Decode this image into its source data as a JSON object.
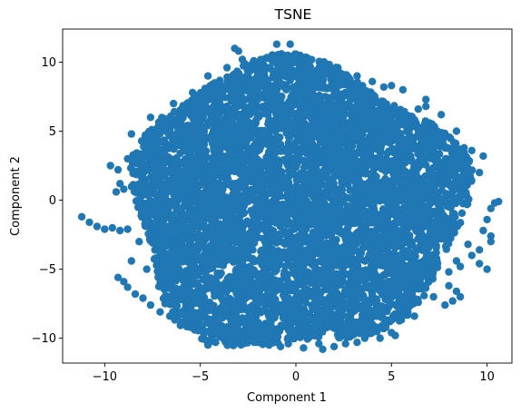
{
  "chart_data": {
    "type": "scatter",
    "title": "TSNE",
    "xlabel": "Component 1",
    "ylabel": "Component 2",
    "xlim": [
      -12.2,
      11.3
    ],
    "ylim": [
      -11.8,
      12.4
    ],
    "xticks": [
      -10,
      -5,
      0,
      5,
      10
    ],
    "yticks": [
      -10,
      -5,
      0,
      5,
      10
    ],
    "xtick_labels": [
      "−10",
      "−5",
      "0",
      "5",
      "10"
    ],
    "ytick_labels": [
      "−10",
      "−5",
      "0",
      "5",
      "10"
    ],
    "grid": false,
    "legend": false,
    "series": [
      {
        "color": "#1f77b4",
        "cluster": {
          "center": [
            0.0,
            -0.2
          ],
          "radius_x": 8.7,
          "radius_y_top": 10.2,
          "radius_y_bottom": 10.6,
          "approx_points": 6000
        },
        "points": [
          [
            -11.2,
            -1.2
          ],
          [
            -10.8,
            -1.6
          ],
          [
            -10.4,
            -1.9
          ],
          [
            -10.0,
            -2.1
          ],
          [
            -9.6,
            -2.0
          ],
          [
            -9.2,
            -2.2
          ],
          [
            -8.8,
            -2.1
          ],
          [
            -9.7,
            2.5
          ],
          [
            -9.3,
            2.2
          ],
          [
            -9.2,
            1.2
          ],
          [
            -9.4,
            0.6
          ],
          [
            -9.0,
            0.8
          ],
          [
            -9.3,
            -5.6
          ],
          [
            -9.0,
            -5.9
          ],
          [
            -8.8,
            -6.3
          ],
          [
            -8.4,
            -6.8
          ],
          [
            -8.0,
            -7.1
          ],
          [
            -7.6,
            -7.6
          ],
          [
            -7.1,
            -8.1
          ],
          [
            -6.6,
            -8.4
          ],
          [
            -6.0,
            -8.2
          ],
          [
            -5.6,
            -8.6
          ],
          [
            -4.6,
            -10.5
          ],
          [
            -4.2,
            -10.3
          ],
          [
            -3.8,
            -10.0
          ],
          [
            -3.2,
            -9.8
          ],
          [
            -2.6,
            -10.0
          ],
          [
            -2.0,
            -10.3
          ],
          [
            -1.4,
            -10.5
          ],
          [
            -0.8,
            -10.6
          ],
          [
            -0.4,
            -10.4
          ],
          [
            0.4,
            -10.7
          ],
          [
            1.4,
            -10.8
          ],
          [
            2.0,
            -10.6
          ],
          [
            2.6,
            -10.4
          ],
          [
            3.2,
            -10.3
          ],
          [
            3.6,
            -10.0
          ],
          [
            5.0,
            -9.6
          ],
          [
            5.2,
            -9.8
          ],
          [
            -3.2,
            11.0
          ],
          [
            -3.0,
            10.8
          ],
          [
            -1.0,
            11.3
          ],
          [
            -0.3,
            11.3
          ],
          [
            -2.8,
            10.2
          ],
          [
            -4.6,
            9.0
          ],
          [
            -3.6,
            9.6
          ],
          [
            -1.8,
            10.1
          ],
          [
            0.6,
            10.3
          ],
          [
            2.2,
            9.6
          ],
          [
            3.2,
            9.0
          ],
          [
            4.0,
            8.6
          ],
          [
            5.0,
            8.3
          ],
          [
            5.6,
            8.0
          ],
          [
            6.4,
            6.6
          ],
          [
            6.8,
            6.8
          ],
          [
            6.8,
            7.3
          ],
          [
            4.6,
            8.2
          ],
          [
            7.6,
            6.2
          ],
          [
            8.4,
            5.0
          ],
          [
            8.8,
            3.8
          ],
          [
            9.2,
            3.6
          ],
          [
            9.8,
            3.2
          ],
          [
            9.6,
            2.0
          ],
          [
            10.4,
            -0.2
          ],
          [
            10.6,
            -0.1
          ],
          [
            10.2,
            -0.6
          ],
          [
            10.0,
            -1.4
          ],
          [
            9.8,
            -2.2
          ],
          [
            10.2,
            -2.6
          ],
          [
            10.2,
            -3.0
          ],
          [
            9.6,
            -3.6
          ],
          [
            9.2,
            -4.0
          ],
          [
            9.0,
            -3.2
          ],
          [
            9.6,
            -4.6
          ],
          [
            10.0,
            -5.0
          ],
          [
            8.6,
            -4.8
          ],
          [
            8.0,
            -5.2
          ],
          [
            6.8,
            -4.8
          ],
          [
            8.0,
            -6.2
          ],
          [
            8.4,
            -6.6
          ],
          [
            8.6,
            -7.0
          ],
          [
            8.2,
            -7.3
          ],
          [
            6.6,
            -6.4
          ],
          [
            6.0,
            -7.0
          ],
          [
            6.4,
            -7.4
          ],
          [
            5.6,
            -8.0
          ],
          [
            4.6,
            -8.6
          ],
          [
            3.8,
            -8.8
          ],
          [
            2.6,
            -9.0
          ],
          [
            7.0,
            -3.2
          ],
          [
            7.6,
            -2.8
          ],
          [
            8.2,
            -1.2
          ],
          [
            8.6,
            0.2
          ],
          [
            8.8,
            1.6
          ],
          [
            8.4,
            -4.4
          ],
          [
            -7.6,
            6.0
          ],
          [
            -6.4,
            7.0
          ],
          [
            -5.4,
            7.8
          ],
          [
            -2.0,
            9.6
          ],
          [
            -8.6,
            4.8
          ],
          [
            -8.8,
            3.0
          ],
          [
            -8.2,
            -3.0
          ],
          [
            -8.6,
            -4.4
          ],
          [
            -7.8,
            -5.0
          ],
          [
            -5.0,
            -9.0
          ],
          [
            -4.0,
            -9.2
          ],
          [
            -2.0,
            -9.4
          ],
          [
            1.0,
            -9.8
          ],
          [
            3.0,
            -9.6
          ],
          [
            4.2,
            -9.4
          ],
          [
            6.2,
            -8.4
          ],
          [
            7.2,
            -7.0
          ],
          [
            7.8,
            -7.6
          ],
          [
            4.4,
            -10.0
          ],
          [
            1.2,
            -10.4
          ]
        ]
      }
    ]
  }
}
